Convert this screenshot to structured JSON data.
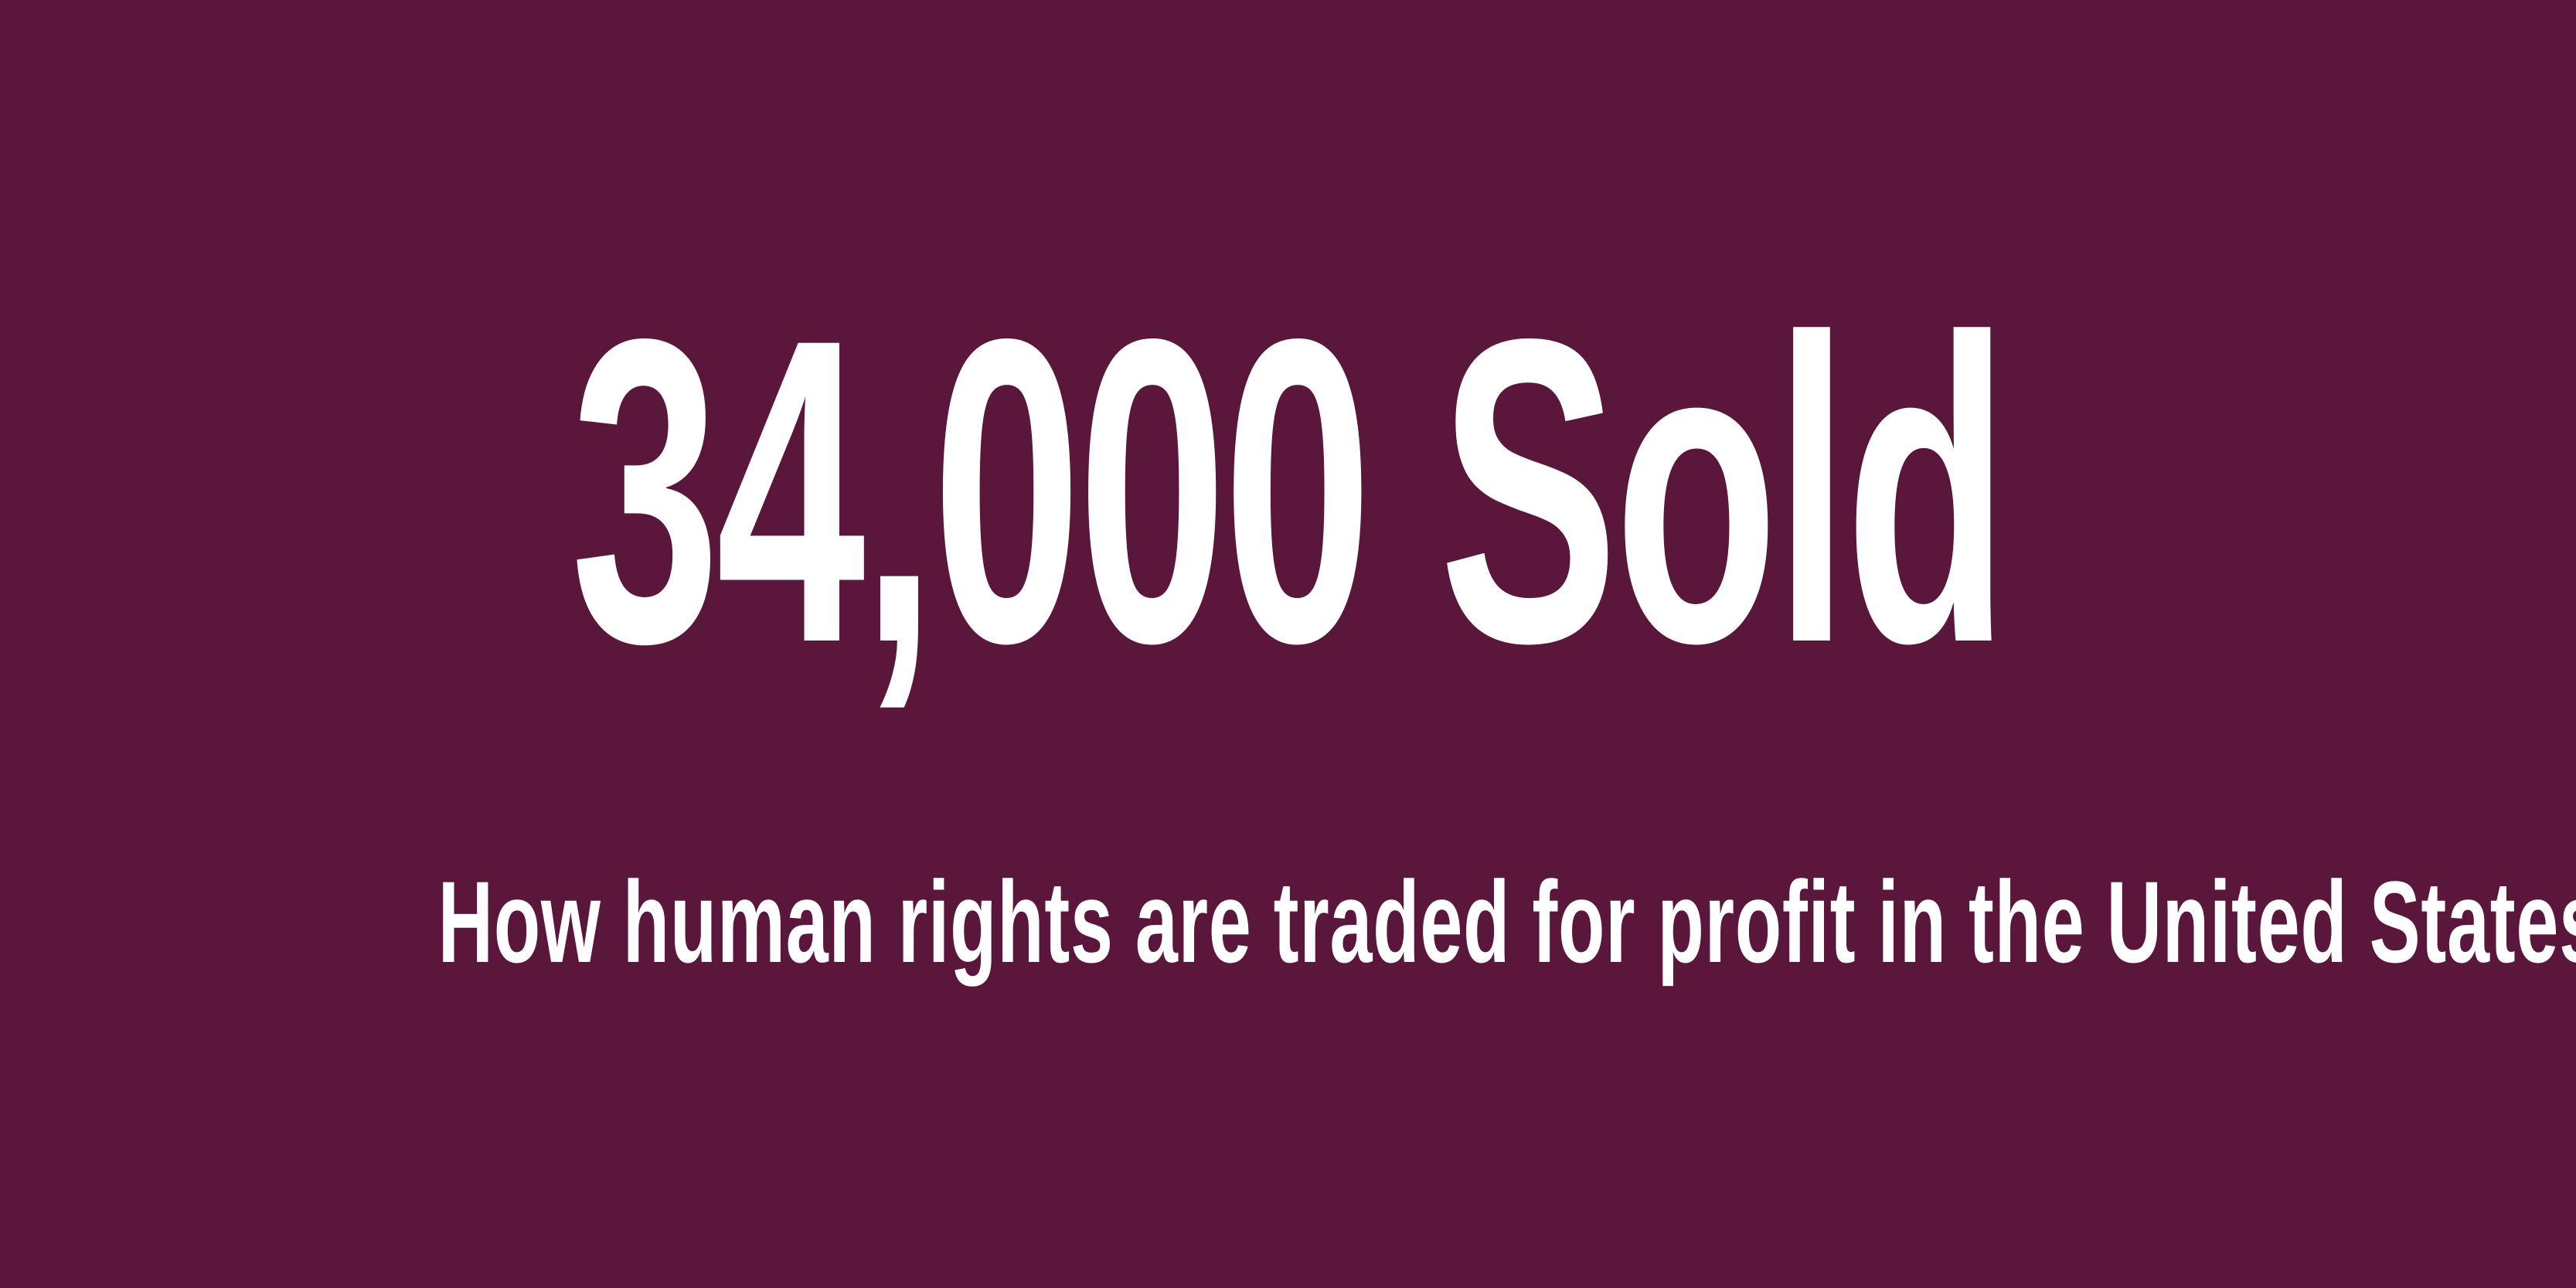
{
  "headline": "34,000 Sold",
  "subtitle": "How human rights are traded for profit in the United States",
  "colors": {
    "background": "#5b163b",
    "text": "#ffffff"
  }
}
